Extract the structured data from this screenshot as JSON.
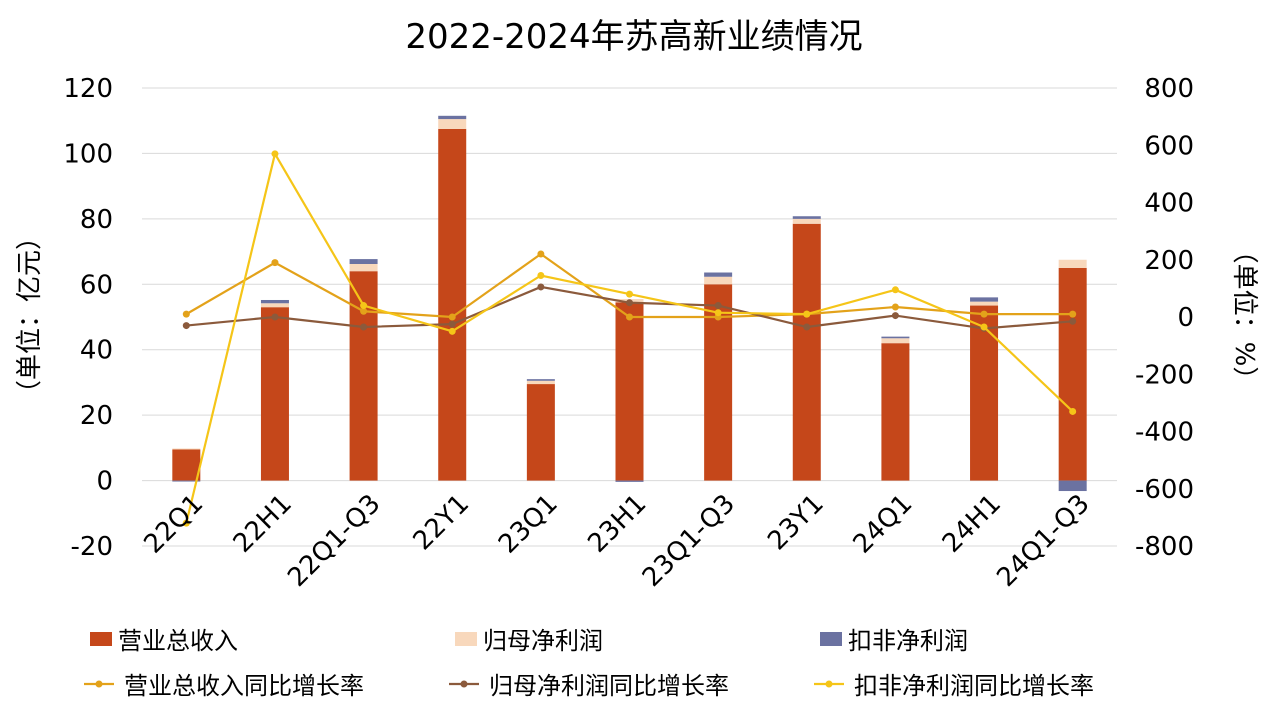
{
  "chart_data": {
    "type": "bar+line",
    "title": "2022-2024年苏高新业绩情况",
    "ylabel_left": "（单位：亿元）",
    "ylabel_right": "（单位：%）",
    "categories": [
      "22Q1",
      "22H1",
      "22Q1-Q3",
      "22Y1",
      "23Q1",
      "23H1",
      "23Q1-Q3",
      "23Y1",
      "24Q1",
      "24H1",
      "24Q1-Q3"
    ],
    "y_left": {
      "min": -20,
      "max": 120,
      "step": 20,
      "ticks": [
        "-20",
        "0",
        "20",
        "40",
        "60",
        "80",
        "100",
        "120"
      ]
    },
    "y_right": {
      "min": -800,
      "max": 800,
      "step": 200,
      "ticks": [
        "-800",
        "-600",
        "-400",
        "-200",
        "0",
        "200",
        "400",
        "600",
        "800"
      ]
    },
    "grid": true,
    "legend_position": "bottom",
    "bar_series": [
      {
        "name": "营业总收入",
        "color": "#c5471a",
        "values": [
          9.5,
          53,
          64,
          107.5,
          29.5,
          54.5,
          60,
          78.5,
          42,
          53.5,
          65
        ]
      },
      {
        "name": "归母净利润",
        "color": "#f8d8bc",
        "values": [
          0.3,
          1.2,
          2.2,
          3.0,
          1.0,
          1.0,
          2.3,
          1.5,
          1.5,
          1.2,
          2.5
        ]
      },
      {
        "name": "扣非净利润",
        "color": "#6b72a1",
        "values": [
          -0.3,
          1.0,
          1.5,
          1.0,
          0.5,
          -0.4,
          1.3,
          0.8,
          0.5,
          1.3,
          -3.2
        ]
      }
    ],
    "line_series": [
      {
        "name": "营业总收入同比增长率",
        "color": "#e3a21a",
        "values": [
          10,
          190,
          20,
          0,
          220,
          0,
          0,
          10,
          35,
          10,
          10
        ]
      },
      {
        "name": "归母净利润同比增长率",
        "color": "#8b5a3c",
        "values": [
          -30,
          0,
          -35,
          -25,
          105,
          50,
          40,
          -35,
          5,
          -40,
          -15
        ]
      },
      {
        "name": "扣非净利润同比增长率",
        "color": "#f5c518",
        "values": [
          -720,
          570,
          40,
          -50,
          145,
          80,
          15,
          10,
          95,
          -35,
          -330
        ]
      }
    ]
  },
  "legend": [
    {
      "label": "营业总收入",
      "swatch": "bar",
      "color": "#c5471a"
    },
    {
      "label": "归母净利润",
      "swatch": "bar",
      "color": "#f8d8bc"
    },
    {
      "label": "扣非净利润",
      "swatch": "bar",
      "color": "#6b72a1"
    },
    {
      "label": "营业总收入同比增长率",
      "swatch": "line",
      "color": "#e3a21a"
    },
    {
      "label": "归母净利润同比增长率",
      "swatch": "line",
      "color": "#8b5a3c"
    },
    {
      "label": "扣非净利润同比增长率",
      "swatch": "line",
      "color": "#f5c518"
    }
  ]
}
